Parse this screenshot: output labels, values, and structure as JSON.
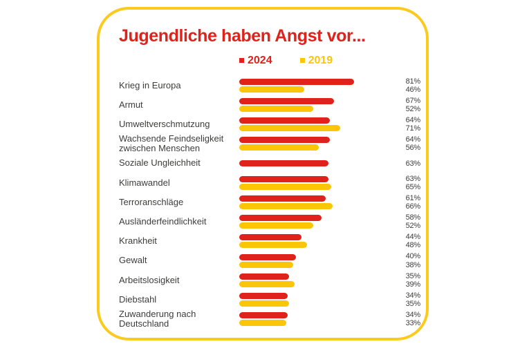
{
  "colors": {
    "red": "#DF221B",
    "yellow": "#FBC608",
    "card_border": "#FBCA1F",
    "text": "#3C3C3B",
    "background": "#FFFFFF"
  },
  "chart_data": {
    "type": "bar",
    "orientation": "horizontal",
    "title": "Jugendliche haben Angst vor...",
    "unit": "%",
    "legend_position": "top",
    "xlim": [
      0,
      100
    ],
    "categories": [
      "Krieg in Europa",
      "Armut",
      "Umweltverschmutzung",
      "Wachsende Feindseligkeit zwischen Menschen",
      "Soziale Ungleichheit",
      "Klimawandel",
      "Terroranschläge",
      "Ausländerfeindlichkeit",
      "Krankheit",
      "Gewalt",
      "Arbeitslosigkeit",
      "Diebstahl",
      "Zuwanderung nach Deutschland"
    ],
    "series": [
      {
        "name": "2024",
        "color": "#DF221B",
        "values": [
          81,
          67,
          64,
          64,
          63,
          63,
          61,
          58,
          44,
          40,
          35,
          34,
          34
        ]
      },
      {
        "name": "2019",
        "color": "#FBC608",
        "values": [
          46,
          52,
          71,
          56,
          null,
          65,
          66,
          52,
          48,
          38,
          39,
          35,
          33
        ]
      }
    ]
  }
}
